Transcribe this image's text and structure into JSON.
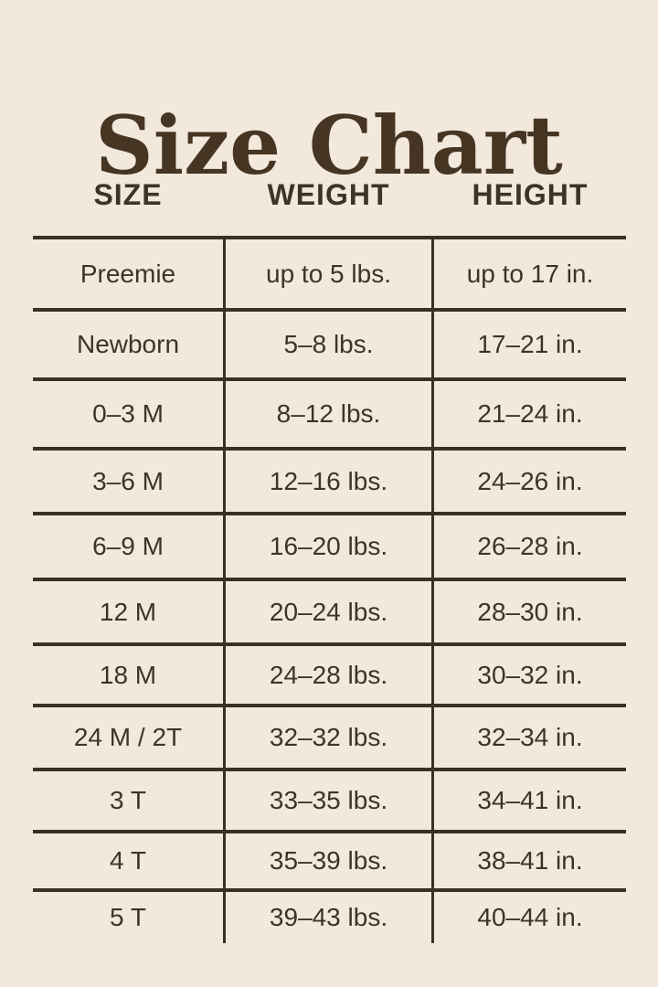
{
  "colors": {
    "background": "#f2e9dc",
    "ink": "#3e3426",
    "title_ink": "#473524",
    "line": "#3a3124"
  },
  "chart_data": {
    "type": "table",
    "title": "Size Chart",
    "columns": [
      "SIZE",
      "WEIGHT",
      "HEIGHT"
    ],
    "rows": [
      [
        "Preemie",
        "up to 5 lbs.",
        "up to 17 in."
      ],
      [
        "Newborn",
        "5–8 lbs.",
        "17–21 in."
      ],
      [
        "0–3 M",
        "8–12 lbs.",
        "21–24 in."
      ],
      [
        "3–6 M",
        "12–16 lbs.",
        "24–26 in."
      ],
      [
        "6–9 M",
        "16–20 lbs.",
        "26–28 in."
      ],
      [
        "12 M",
        "20–24 lbs.",
        "28–30 in."
      ],
      [
        "18 M",
        "24–28 lbs.",
        "30–32 in."
      ],
      [
        "24 M / 2T",
        "32–32 lbs.",
        "32–34 in."
      ],
      [
        "3 T",
        "33–35 lbs.",
        "34–41 in."
      ],
      [
        "4 T",
        "35–39 lbs.",
        "38–41 in."
      ],
      [
        "5 T",
        "39–43 lbs.",
        "40–44 in."
      ]
    ]
  }
}
